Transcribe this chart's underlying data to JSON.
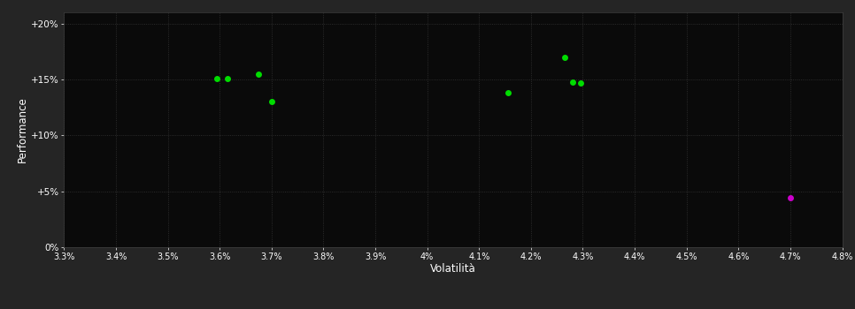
{
  "xlabel": "Volatilità",
  "ylabel": "Performance",
  "background_color": "#252525",
  "plot_bg_color": "#0a0a0a",
  "grid_color": "#404040",
  "text_color": "#ffffff",
  "tick_color": "#ffffff",
  "xlim": [
    0.033,
    0.048
  ],
  "ylim": [
    0.0,
    0.21
  ],
  "xticks": [
    0.033,
    0.034,
    0.035,
    0.036,
    0.037,
    0.038,
    0.039,
    0.04,
    0.041,
    0.042,
    0.043,
    0.044,
    0.045,
    0.046,
    0.047,
    0.048
  ],
  "yticks": [
    0.0,
    0.05,
    0.1,
    0.15,
    0.2
  ],
  "ytick_labels": [
    "0%",
    "+5%",
    "+10%",
    "+15%",
    "+20%"
  ],
  "xtick_labels": [
    "3.3%",
    "3.4%",
    "3.5%",
    "3.6%",
    "3.7%",
    "3.8%",
    "3.9%",
    "4%",
    "4.1%",
    "4.2%",
    "4.3%",
    "4.4%",
    "4.5%",
    "4.6%",
    "4.7%",
    "4.8%"
  ],
  "green_points": [
    [
      0.03595,
      0.151
    ],
    [
      0.03615,
      0.151
    ],
    [
      0.03675,
      0.155
    ],
    [
      0.037,
      0.13
    ],
    [
      0.04155,
      0.138
    ],
    [
      0.04265,
      0.17
    ],
    [
      0.0428,
      0.148
    ],
    [
      0.04295,
      0.147
    ]
  ],
  "magenta_points": [
    [
      0.047,
      0.044
    ]
  ],
  "green_color": "#00dd00",
  "magenta_color": "#cc00cc",
  "marker_size": 5
}
